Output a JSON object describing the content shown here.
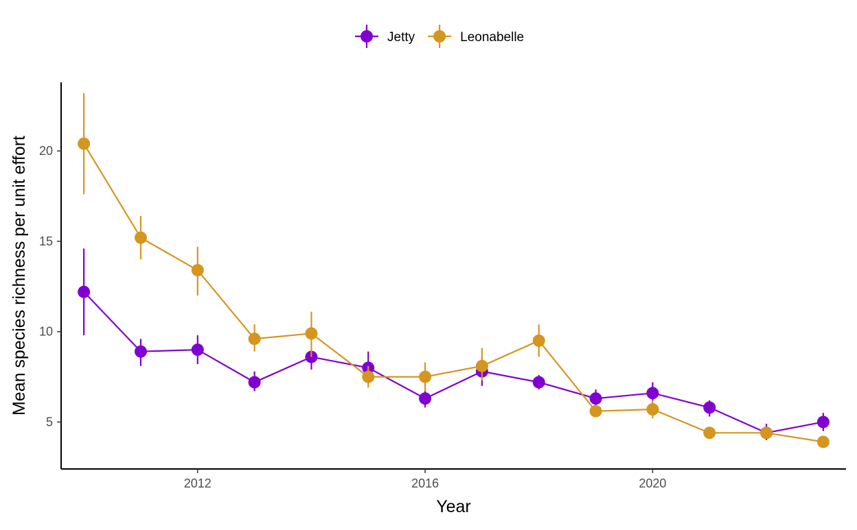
{
  "chart_data": {
    "type": "line",
    "xlabel": "Year",
    "ylabel": "Mean species richness per unit effort",
    "xlim": [
      2009.6,
      2023.4
    ],
    "ylim": [
      2.4,
      23.8
    ],
    "x_ticks": [
      2012,
      2016,
      2020
    ],
    "y_ticks": [
      5,
      10,
      15,
      20
    ],
    "x_tick_labels": [
      "2012",
      "2016",
      "2020"
    ],
    "y_tick_labels": [
      "5",
      "10",
      "15",
      "20"
    ],
    "grid": false,
    "legend_position": "top",
    "x": [
      2010,
      2011,
      2012,
      2013,
      2014,
      2015,
      2016,
      2017,
      2018,
      2019,
      2020,
      2021,
      2022,
      2023
    ],
    "series": [
      {
        "name": "Jetty",
        "color": "#8000D0",
        "values": [
          12.2,
          8.9,
          9.0,
          7.2,
          8.6,
          8.0,
          6.3,
          7.8,
          7.2,
          6.3,
          6.6,
          5.8,
          4.4,
          5.0
        ],
        "error_low": [
          9.8,
          8.1,
          8.2,
          6.7,
          7.9,
          7.3,
          5.8,
          7.0,
          6.8,
          5.9,
          6.0,
          5.3,
          4.0,
          4.5
        ],
        "error_high": [
          14.6,
          9.6,
          9.8,
          7.8,
          9.0,
          8.9,
          6.8,
          8.6,
          7.6,
          6.8,
          7.2,
          6.2,
          4.9,
          5.5
        ]
      },
      {
        "name": "Leonabelle",
        "color": "#D4961E",
        "values": [
          20.4,
          15.2,
          13.4,
          9.6,
          9.9,
          7.5,
          7.5,
          8.1,
          9.5,
          5.6,
          5.7,
          4.4,
          4.4,
          3.9
        ],
        "error_low": [
          17.6,
          14.0,
          12.0,
          8.9,
          8.6,
          6.9,
          6.7,
          7.3,
          8.6,
          5.3,
          5.2,
          4.2,
          4.1,
          3.7
        ],
        "error_high": [
          23.2,
          16.4,
          14.7,
          10.4,
          11.1,
          8.1,
          8.3,
          9.1,
          10.4,
          5.9,
          6.2,
          4.6,
          4.7,
          4.1
        ]
      }
    ]
  }
}
